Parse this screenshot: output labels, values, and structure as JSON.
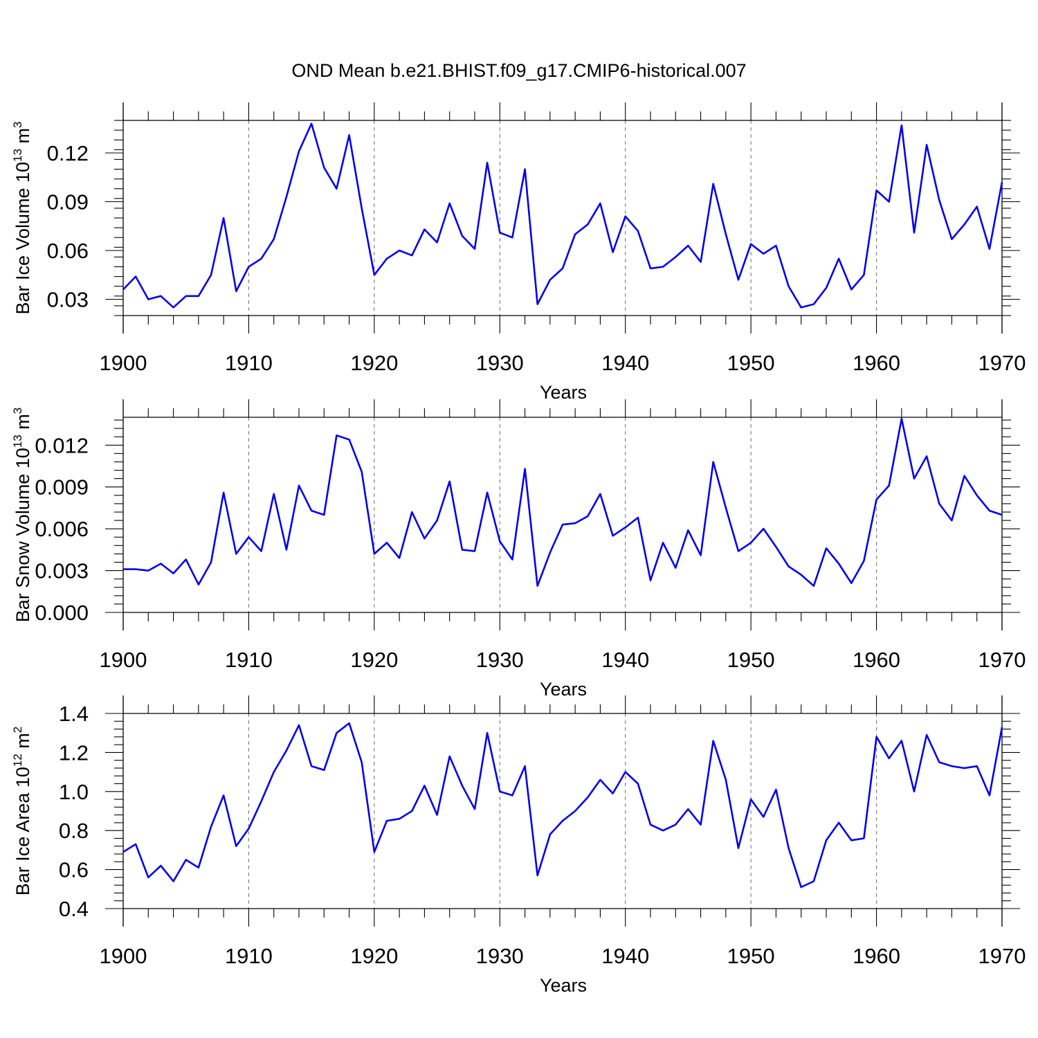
{
  "figure": {
    "title": "OND Mean b.e21.BHIST.f09_g17.CMIP6-historical.007",
    "line_color": "#0000ee",
    "grid_color": "#777777"
  },
  "chart_data": [
    {
      "type": "line",
      "name": "bar-ice-volume",
      "ylabel_parts": [
        "Bar Ice Volume 10",
        "13",
        " m",
        "3"
      ],
      "xlabel": "Years",
      "xlim": [
        1900,
        1970
      ],
      "ylim": [
        0.02,
        0.14
      ],
      "xticks": [
        1900,
        1910,
        1920,
        1930,
        1940,
        1950,
        1960,
        1970
      ],
      "yticks": [
        0.03,
        0.06,
        0.09,
        0.12
      ],
      "ytick_labels": [
        "0.03",
        "0.06",
        "0.09",
        "0.12"
      ],
      "grid_x": [
        1910,
        1920,
        1930,
        1940,
        1950,
        1960
      ],
      "series": [
        {
          "name": "Bar Ice Volume",
          "x_start": 1900,
          "values": [
            0.036,
            0.044,
            0.03,
            0.032,
            0.025,
            0.032,
            0.032,
            0.045,
            0.08,
            0.035,
            0.05,
            0.055,
            0.067,
            0.093,
            0.121,
            0.138,
            0.111,
            0.098,
            0.131,
            0.086,
            0.045,
            0.055,
            0.06,
            0.057,
            0.073,
            0.065,
            0.089,
            0.069,
            0.061,
            0.114,
            0.071,
            0.068,
            0.11,
            0.027,
            0.042,
            0.049,
            0.07,
            0.076,
            0.089,
            0.059,
            0.081,
            0.072,
            0.049,
            0.05,
            0.056,
            0.063,
            0.053,
            0.101,
            0.07,
            0.042,
            0.064,
            0.058,
            0.063,
            0.038,
            0.025,
            0.027,
            0.037,
            0.055,
            0.036,
            0.045,
            0.097,
            0.09,
            0.137,
            0.071,
            0.125,
            0.091,
            0.067,
            0.076,
            0.087,
            0.061,
            0.102
          ]
        }
      ]
    },
    {
      "type": "line",
      "name": "bar-snow-volume",
      "ylabel_parts": [
        "Bar Snow Volume 10",
        "13",
        " m",
        "3"
      ],
      "xlabel": "Years",
      "xlim": [
        1900,
        1970
      ],
      "ylim": [
        0.0,
        0.014
      ],
      "xticks": [
        1900,
        1910,
        1920,
        1930,
        1940,
        1950,
        1960,
        1970
      ],
      "yticks": [
        0.0,
        0.003,
        0.006,
        0.009,
        0.012
      ],
      "ytick_labels": [
        "0.000",
        "0.003",
        "0.006",
        "0.009",
        "0.012"
      ],
      "grid_x": [
        1910,
        1920,
        1930,
        1940,
        1950,
        1960
      ],
      "series": [
        {
          "name": "Bar Snow Volume",
          "x_start": 1900,
          "values": [
            0.0031,
            0.0031,
            0.003,
            0.0035,
            0.0028,
            0.0038,
            0.002,
            0.0036,
            0.0086,
            0.0042,
            0.0054,
            0.0044,
            0.0085,
            0.0045,
            0.0091,
            0.0073,
            0.007,
            0.0127,
            0.0124,
            0.0101,
            0.0042,
            0.005,
            0.0039,
            0.0072,
            0.0053,
            0.0066,
            0.0094,
            0.0045,
            0.0044,
            0.0086,
            0.0051,
            0.0038,
            0.0103,
            0.0019,
            0.0043,
            0.0063,
            0.0064,
            0.0069,
            0.0085,
            0.0055,
            0.0061,
            0.0068,
            0.0023,
            0.005,
            0.0032,
            0.0059,
            0.0041,
            0.0108,
            0.0075,
            0.0044,
            0.005,
            0.006,
            0.0047,
            0.0033,
            0.0027,
            0.0019,
            0.0046,
            0.0035,
            0.0021,
            0.0037,
            0.0081,
            0.0091,
            0.0139,
            0.0096,
            0.0112,
            0.0078,
            0.0066,
            0.0098,
            0.0084,
            0.0073,
            0.007
          ]
        }
      ]
    },
    {
      "type": "line",
      "name": "bar-ice-area",
      "ylabel_parts": [
        "Bar Ice Area 10",
        "12",
        " m",
        "2"
      ],
      "xlabel": "Years",
      "xlim": [
        1900,
        1970
      ],
      "ylim": [
        0.4,
        1.4
      ],
      "xticks": [
        1900,
        1910,
        1920,
        1930,
        1940,
        1950,
        1960,
        1970
      ],
      "yticks": [
        0.4,
        0.6,
        0.8,
        1.0,
        1.2,
        1.4
      ],
      "ytick_labels": [
        "0.4",
        "0.6",
        "0.8",
        "1.0",
        "1.2",
        "1.4"
      ],
      "grid_x": [
        1910,
        1920,
        1930,
        1940,
        1950,
        1960
      ],
      "series": [
        {
          "name": "Bar Ice Area",
          "x_start": 1900,
          "values": [
            0.69,
            0.73,
            0.56,
            0.62,
            0.54,
            0.65,
            0.61,
            0.82,
            0.98,
            0.72,
            0.81,
            0.95,
            1.1,
            1.21,
            1.34,
            1.13,
            1.11,
            1.3,
            1.35,
            1.15,
            0.69,
            0.85,
            0.86,
            0.9,
            1.03,
            0.88,
            1.18,
            1.03,
            0.91,
            1.3,
            1.0,
            0.98,
            1.13,
            0.57,
            0.78,
            0.85,
            0.9,
            0.97,
            1.06,
            0.99,
            1.1,
            1.04,
            0.83,
            0.8,
            0.83,
            0.91,
            0.83,
            1.26,
            1.06,
            0.71,
            0.96,
            0.87,
            1.01,
            0.71,
            0.51,
            0.54,
            0.75,
            0.84,
            0.75,
            0.76,
            1.28,
            1.17,
            1.26,
            1.0,
            1.29,
            1.15,
            1.13,
            1.12,
            1.13,
            0.98,
            1.33
          ]
        }
      ]
    }
  ]
}
